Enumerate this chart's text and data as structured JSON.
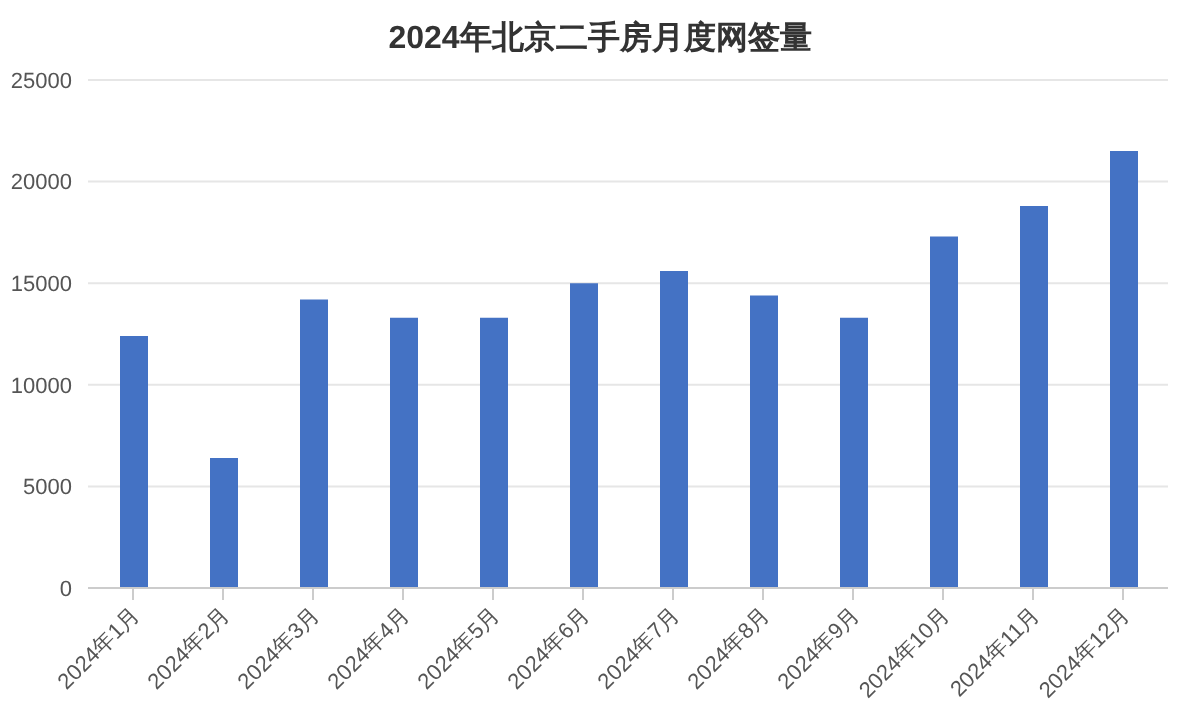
{
  "chart_data": {
    "type": "bar",
    "title": "2024年北京二手房月度网签量",
    "categories": [
      "2024年1月",
      "2024年2月",
      "2024年3月",
      "2024年4月",
      "2024年5月",
      "2024年6月",
      "2024年7月",
      "2024年8月",
      "2024年9月",
      "2024年10月",
      "2024年11月",
      "2024年12月"
    ],
    "values": [
      12400,
      6400,
      14200,
      13300,
      13300,
      15000,
      15600,
      14400,
      13300,
      17300,
      18800,
      21500
    ],
    "color": "#4472c4",
    "ylim": [
      0,
      25000
    ],
    "yticks": [
      0,
      5000,
      10000,
      15000,
      20000,
      25000
    ],
    "grid": "y",
    "legend": false
  }
}
